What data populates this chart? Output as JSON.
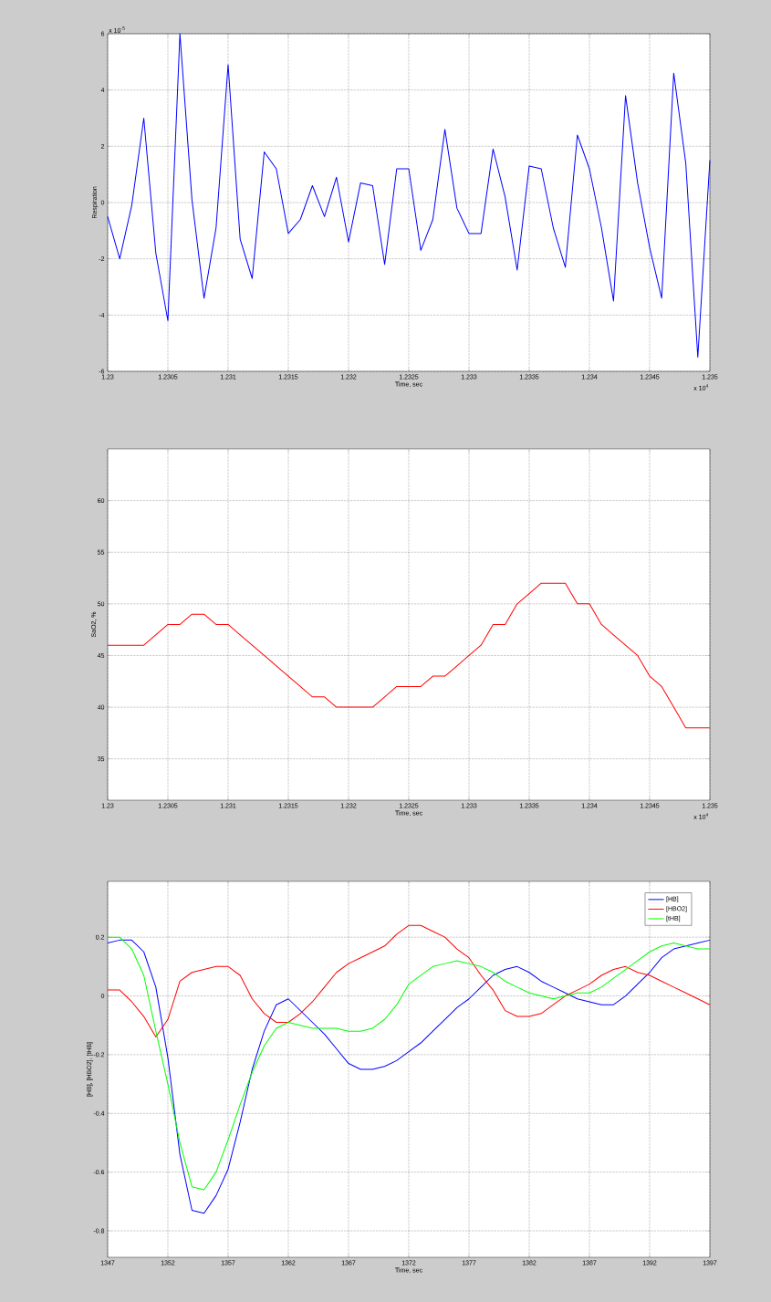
{
  "chart_data": [
    {
      "type": "line",
      "xlabel": "Time, sec",
      "ylabel": "Respiration",
      "color": "#0000ff",
      "grid": true,
      "annotations": [
        "x 10$^{-5}$",
        "x 10$^{4}$"
      ],
      "xlim": [
        1.23,
        1.235
      ],
      "ylim": [
        -6,
        6
      ],
      "yticks": [
        -6,
        -4,
        -2,
        0,
        2,
        4,
        6
      ],
      "xticks": [
        1.23,
        1.2305,
        1.231,
        1.2315,
        1.232,
        1.2325,
        1.233,
        1.2335,
        1.234,
        1.2345,
        1.235
      ],
      "x": [
        1.23,
        1.2301,
        1.2302,
        1.2303,
        1.2304,
        1.2305,
        1.2306,
        1.2307,
        1.2308,
        1.2309,
        1.231,
        1.2311,
        1.2312,
        1.2313,
        1.2314,
        1.2315,
        1.2316,
        1.2317,
        1.2318,
        1.2319,
        1.232,
        1.2321,
        1.2322,
        1.2323,
        1.2324,
        1.2325,
        1.2326,
        1.2327,
        1.2328,
        1.2329,
        1.233,
        1.2331,
        1.2332,
        1.2333,
        1.2334,
        1.2335,
        1.2336,
        1.2337,
        1.2338,
        1.2339,
        1.234,
        1.2341,
        1.2342,
        1.2343,
        1.2344,
        1.2345,
        1.2346,
        1.2347,
        1.2348,
        1.2349,
        1.235
      ],
      "values": [
        -0.5,
        -2.0,
        -0.1,
        3.0,
        -1.8,
        -4.2,
        6.0,
        0.1,
        -3.4,
        -0.9,
        4.9,
        -1.3,
        -2.7,
        1.8,
        1.2,
        -1.1,
        -0.6,
        0.6,
        -0.5,
        0.9,
        -1.4,
        0.7,
        0.6,
        -2.2,
        1.2,
        1.2,
        -1.7,
        -0.6,
        2.6,
        -0.2,
        -1.1,
        -1.1,
        1.9,
        0.2,
        -2.4,
        1.3,
        1.2,
        -0.9,
        -2.3,
        2.4,
        1.2,
        -0.9,
        -3.5,
        3.8,
        0.7,
        -1.6,
        -3.4,
        4.6,
        1.4,
        -5.5,
        1.5
      ]
    },
    {
      "type": "line",
      "xlabel": "Time, sec",
      "ylabel": "SaO2, %",
      "color": "#ff0000",
      "grid": true,
      "annotations": [
        "x 10$^{4}$"
      ],
      "xlim": [
        1.23,
        1.235
      ],
      "ylim": [
        31,
        65
      ],
      "yticks": [
        35,
        40,
        45,
        50,
        55,
        60
      ],
      "xticks": [
        1.23,
        1.2305,
        1.231,
        1.2315,
        1.232,
        1.2325,
        1.233,
        1.2335,
        1.234,
        1.2345,
        1.235
      ],
      "x": [
        1.23,
        1.2301,
        1.2302,
        1.2303,
        1.2304,
        1.2305,
        1.2306,
        1.2307,
        1.2308,
        1.2309,
        1.231,
        1.2311,
        1.2312,
        1.2313,
        1.2314,
        1.2315,
        1.2316,
        1.2317,
        1.2318,
        1.2319,
        1.232,
        1.2321,
        1.2322,
        1.2323,
        1.2324,
        1.2325,
        1.2326,
        1.2327,
        1.2328,
        1.2329,
        1.233,
        1.2331,
        1.2332,
        1.2333,
        1.2334,
        1.2335,
        1.2336,
        1.2337,
        1.2338,
        1.2339,
        1.234,
        1.2341,
        1.2342,
        1.2343,
        1.2344,
        1.2345,
        1.2346,
        1.2347,
        1.2348,
        1.2349,
        1.235
      ],
      "values": [
        46,
        46,
        46,
        46,
        47,
        48,
        48,
        49,
        49,
        48,
        48,
        47,
        46,
        45,
        44,
        43,
        42,
        41,
        41,
        40,
        40,
        40,
        40,
        41,
        42,
        42,
        42,
        43,
        43,
        44,
        45,
        46,
        48,
        48,
        50,
        51,
        52,
        52,
        52,
        50,
        50,
        48,
        47,
        46,
        45,
        43,
        42,
        40,
        38,
        38,
        38
      ]
    },
    {
      "type": "line",
      "xlabel": "Time, sec",
      "ylabel": "[HB], [HBO2], [tHB]",
      "grid": true,
      "legend": "top right",
      "xlim": [
        1347,
        1397
      ],
      "ylim": [
        -0.89,
        0.39
      ],
      "yticks": [
        -0.8,
        -0.6,
        -0.4,
        -0.2,
        0,
        0.2
      ],
      "xticks": [
        1347,
        1352,
        1357,
        1362,
        1367,
        1372,
        1377,
        1382,
        1387,
        1392,
        1397
      ],
      "x": [
        1347,
        1348,
        1349,
        1350,
        1351,
        1352,
        1353,
        1354,
        1355,
        1356,
        1357,
        1358,
        1359,
        1360,
        1361,
        1362,
        1363,
        1364,
        1365,
        1366,
        1367,
        1368,
        1369,
        1370,
        1371,
        1372,
        1373,
        1374,
        1375,
        1376,
        1377,
        1378,
        1379,
        1380,
        1381,
        1382,
        1383,
        1384,
        1385,
        1386,
        1387,
        1388,
        1389,
        1390,
        1391,
        1392,
        1393,
        1394,
        1395,
        1396,
        1397
      ],
      "series": [
        {
          "name": "[HB]",
          "color": "#0000ff",
          "values": [
            0.18,
            0.19,
            0.19,
            0.15,
            0.03,
            -0.21,
            -0.54,
            -0.73,
            -0.74,
            -0.68,
            -0.59,
            -0.43,
            -0.25,
            -0.12,
            -0.03,
            -0.01,
            -0.05,
            -0.09,
            -0.13,
            -0.18,
            -0.23,
            -0.25,
            -0.25,
            -0.24,
            -0.22,
            -0.19,
            -0.16,
            -0.12,
            -0.08,
            -0.04,
            -0.01,
            0.03,
            0.07,
            0.09,
            0.1,
            0.08,
            0.05,
            0.03,
            0.01,
            -0.01,
            -0.02,
            -0.03,
            -0.03,
            0,
            0.04,
            0.08,
            0.13,
            0.16,
            0.17,
            0.18,
            0.19
          ]
        },
        {
          "name": "[HBO2]",
          "color": "#ff0000",
          "values": [
            0.02,
            0.02,
            -0.02,
            -0.07,
            -0.14,
            -0.08,
            0.05,
            0.08,
            0.09,
            0.1,
            0.1,
            0.07,
            -0.01,
            -0.06,
            -0.09,
            -0.09,
            -0.06,
            -0.02,
            0.03,
            0.08,
            0.11,
            0.13,
            0.15,
            0.17,
            0.21,
            0.24,
            0.24,
            0.22,
            0.2,
            0.16,
            0.13,
            0.07,
            0.02,
            -0.05,
            -0.07,
            -0.07,
            -0.06,
            -0.03,
            0,
            0.02,
            0.04,
            0.07,
            0.09,
            0.1,
            0.08,
            0.07,
            0.05,
            0.03,
            0.01,
            -0.01,
            -0.03
          ]
        },
        {
          "name": "[tHB]",
          "color": "#00ff00",
          "values": [
            0.2,
            0.2,
            0.16,
            0.07,
            -0.12,
            -0.3,
            -0.5,
            -0.65,
            -0.66,
            -0.6,
            -0.49,
            -0.37,
            -0.26,
            -0.17,
            -0.11,
            -0.09,
            -0.1,
            -0.11,
            -0.11,
            -0.11,
            -0.12,
            -0.12,
            -0.11,
            -0.08,
            -0.03,
            0.04,
            0.07,
            0.1,
            0.11,
            0.12,
            0.11,
            0.1,
            0.08,
            0.05,
            0.03,
            0.01,
            0,
            -0.01,
            0,
            0.01,
            0.01,
            0.03,
            0.06,
            0.09,
            0.12,
            0.15,
            0.17,
            0.18,
            0.17,
            0.16,
            0.16
          ]
        }
      ]
    }
  ]
}
